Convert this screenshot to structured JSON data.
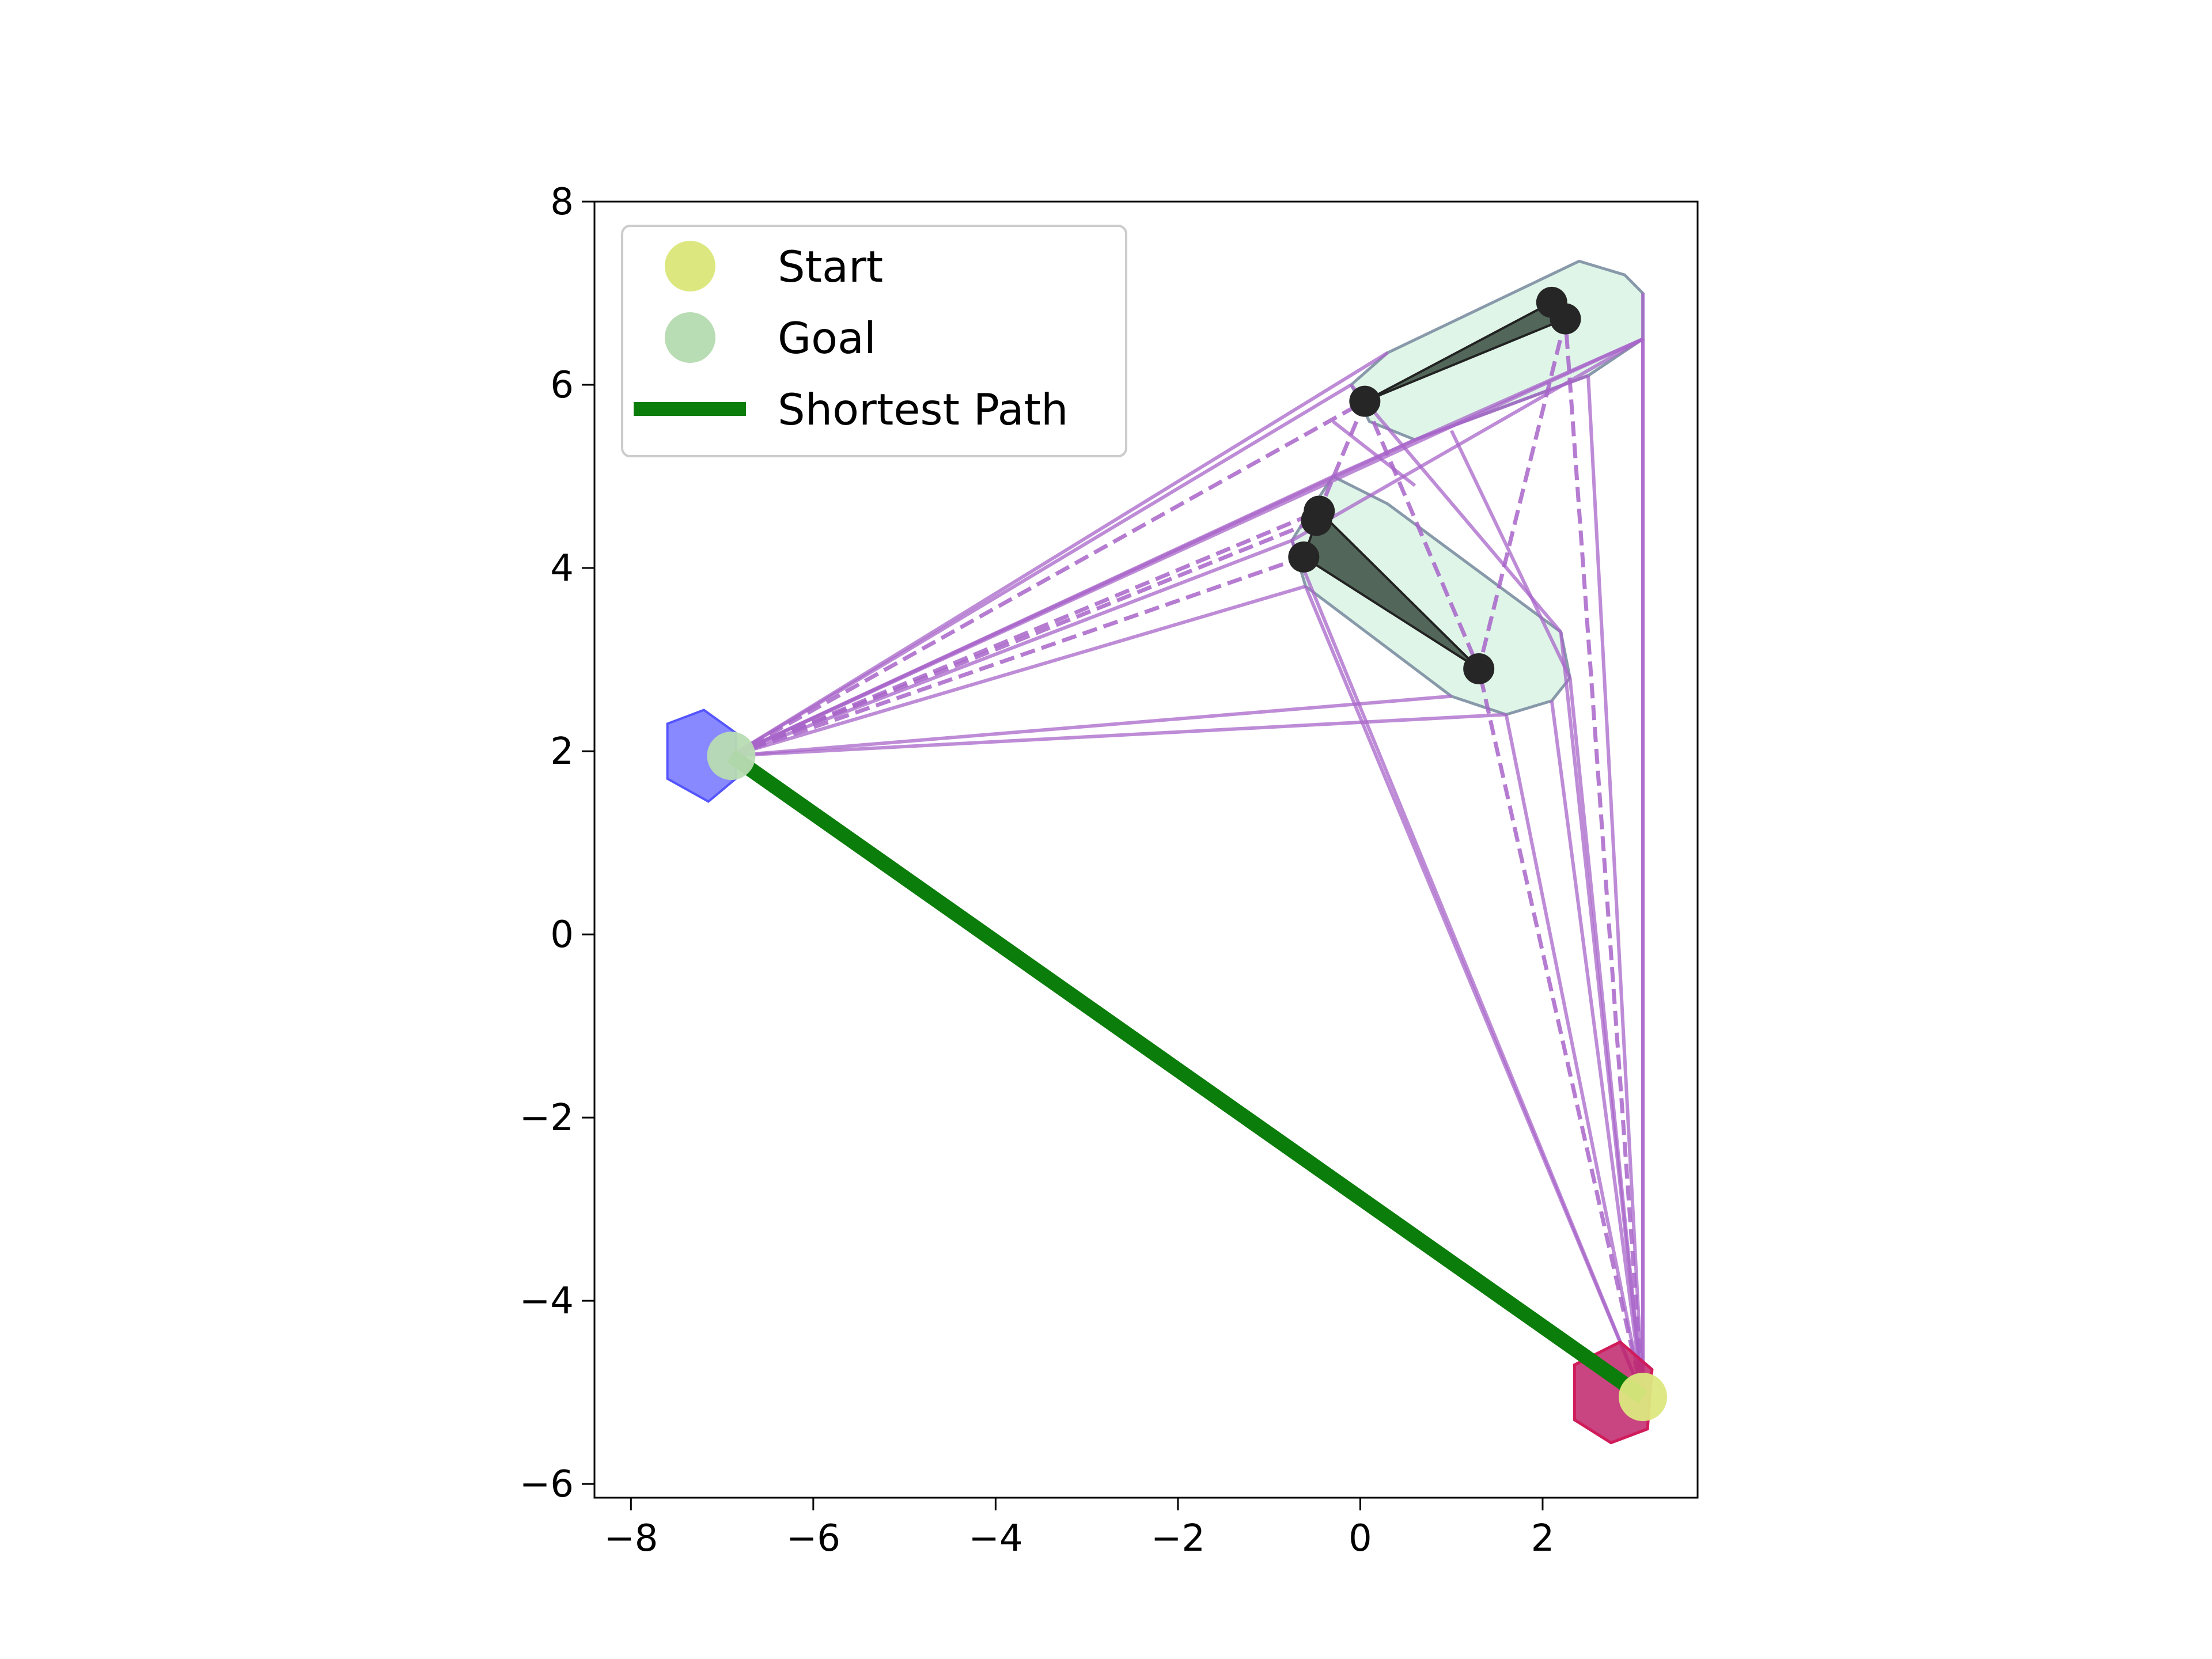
{
  "chart_data": {
    "type": "scatter",
    "title": "",
    "xlabel": "",
    "ylabel": "",
    "xlim": [
      -8.4,
      3.7
    ],
    "ylim": [
      -6.15,
      8.0
    ],
    "xticks": [
      -8,
      -6,
      -4,
      -2,
      0,
      2
    ],
    "yticks": [
      -6,
      -4,
      -2,
      0,
      2,
      4,
      6,
      8
    ],
    "xtick_labels": [
      "−8",
      "−6",
      "−4",
      "−2",
      "0",
      "2"
    ],
    "ytick_labels": [
      "−6",
      "−4",
      "−2",
      "0",
      "2",
      "4",
      "6",
      "8"
    ],
    "grid": false,
    "legend": {
      "placement": "top-left",
      "entries": [
        {
          "label": "Start",
          "marker": "circle",
          "color": "#dce87f"
        },
        {
          "label": "Goal",
          "marker": "circle",
          "color": "#b8dcb3"
        },
        {
          "label": "Shortest Path",
          "marker": "line",
          "color": "#0a7d0a"
        }
      ]
    },
    "start": {
      "x": 3.1,
      "y": -5.05
    },
    "goal": {
      "x": -6.9,
      "y": 1.95
    },
    "shortest_path": [
      [
        -6.9,
        1.95
      ],
      [
        3.1,
        -5.05
      ]
    ],
    "goal_region_polygon": [
      [
        -7.2,
        2.45
      ],
      [
        -6.85,
        2.2
      ],
      [
        -6.85,
        1.7
      ],
      [
        -7.15,
        1.45
      ],
      [
        -7.6,
        1.7
      ],
      [
        -7.6,
        2.3
      ]
    ],
    "start_region_polygon": [
      [
        2.85,
        -4.45
      ],
      [
        3.2,
        -4.75
      ],
      [
        3.15,
        -5.4
      ],
      [
        2.75,
        -5.55
      ],
      [
        2.35,
        -5.3
      ],
      [
        2.35,
        -4.7
      ]
    ],
    "obstacles": [
      {
        "polygon": [
          [
            0.3,
            6.35
          ],
          [
            2.4,
            7.35
          ],
          [
            2.9,
            7.2
          ],
          [
            3.1,
            7.0
          ],
          [
            3.1,
            6.5
          ],
          [
            2.5,
            6.1
          ],
          [
            0.6,
            5.4
          ],
          [
            0.1,
            5.6
          ],
          [
            -0.1,
            6.0
          ]
        ],
        "core": [
          [
            0.05,
            5.82
          ],
          [
            2.1,
            6.9
          ],
          [
            2.25,
            6.72
          ]
        ]
      },
      {
        "polygon": [
          [
            -0.3,
            5.0
          ],
          [
            0.3,
            4.7
          ],
          [
            2.2,
            3.3
          ],
          [
            2.3,
            2.8
          ],
          [
            2.1,
            2.55
          ],
          [
            1.6,
            2.4
          ],
          [
            1.0,
            2.6
          ],
          [
            -0.6,
            3.8
          ],
          [
            -0.75,
            4.3
          ],
          [
            -0.5,
            4.7
          ]
        ],
        "core": [
          [
            -0.45,
            4.62
          ],
          [
            -0.48,
            4.52
          ],
          [
            -0.62,
            4.12
          ],
          [
            1.3,
            2.9
          ]
        ]
      }
    ],
    "edges_solid": [
      [
        [
          -6.9,
          1.95
        ],
        [
          0.3,
          6.35
        ]
      ],
      [
        [
          -6.9,
          1.95
        ],
        [
          0.6,
          5.4
        ]
      ],
      [
        [
          -6.9,
          1.95
        ],
        [
          -0.1,
          6.0
        ]
      ],
      [
        [
          -6.9,
          1.95
        ],
        [
          -0.3,
          5.0
        ]
      ],
      [
        [
          -6.9,
          1.95
        ],
        [
          -0.6,
          3.8
        ]
      ],
      [
        [
          -6.9,
          1.95
        ],
        [
          -0.75,
          4.3
        ]
      ],
      [
        [
          -6.9,
          1.95
        ],
        [
          1.6,
          2.4
        ]
      ],
      [
        [
          -6.9,
          1.95
        ],
        [
          1.0,
          2.6
        ]
      ],
      [
        [
          -6.9,
          1.95
        ],
        [
          3.1,
          6.5
        ]
      ],
      [
        [
          3.1,
          -5.05
        ],
        [
          3.1,
          7.0
        ]
      ],
      [
        [
          3.1,
          -5.05
        ],
        [
          3.1,
          6.5
        ]
      ],
      [
        [
          3.1,
          -5.05
        ],
        [
          2.5,
          6.1
        ]
      ],
      [
        [
          3.1,
          -5.05
        ],
        [
          2.3,
          2.8
        ]
      ],
      [
        [
          3.1,
          -5.05
        ],
        [
          2.2,
          3.3
        ]
      ],
      [
        [
          3.1,
          -5.05
        ],
        [
          2.1,
          2.55
        ]
      ],
      [
        [
          3.1,
          -5.05
        ],
        [
          1.6,
          2.4
        ]
      ],
      [
        [
          3.1,
          -5.05
        ],
        [
          -0.6,
          3.8
        ]
      ],
      [
        [
          3.1,
          -5.05
        ],
        [
          -0.75,
          4.3
        ]
      ],
      [
        [
          -0.75,
          4.3
        ],
        [
          3.1,
          6.5
        ]
      ],
      [
        [
          -0.3,
          5.0
        ],
        [
          3.1,
          6.5
        ]
      ],
      [
        [
          1.0,
          5.5
        ],
        [
          2.3,
          2.8
        ]
      ],
      [
        [
          -0.1,
          6.0
        ],
        [
          2.2,
          3.3
        ]
      ],
      [
        [
          0.6,
          5.4
        ],
        [
          2.5,
          6.1
        ]
      ],
      [
        [
          0.6,
          4.9
        ],
        [
          -0.3,
          5.6
        ]
      ]
    ],
    "edges_dashed": [
      [
        [
          -6.9,
          1.95
        ],
        [
          -0.45,
          4.62
        ]
      ],
      [
        [
          -6.9,
          1.95
        ],
        [
          -0.48,
          4.52
        ]
      ],
      [
        [
          -6.9,
          1.95
        ],
        [
          -0.62,
          4.12
        ]
      ],
      [
        [
          -6.9,
          1.95
        ],
        [
          0.05,
          5.82
        ]
      ],
      [
        [
          3.1,
          -5.05
        ],
        [
          2.25,
          6.72
        ]
      ],
      [
        [
          3.1,
          -5.05
        ],
        [
          1.3,
          2.9
        ]
      ],
      [
        [
          0.05,
          5.82
        ],
        [
          -0.45,
          4.62
        ]
      ],
      [
        [
          0.05,
          5.82
        ],
        [
          1.3,
          2.9
        ]
      ],
      [
        [
          2.25,
          6.72
        ],
        [
          1.3,
          2.9
        ]
      ]
    ],
    "colors": {
      "edges": "#a865c9",
      "obstacle_fill": "#c9eed8",
      "obstacle_edge": "#8899aa",
      "core_fill": "#3a4d40",
      "vertex": "#262626",
      "goal_region": "#5555ff",
      "start_region": "#c0256b",
      "path": "#0a7d0a"
    }
  }
}
